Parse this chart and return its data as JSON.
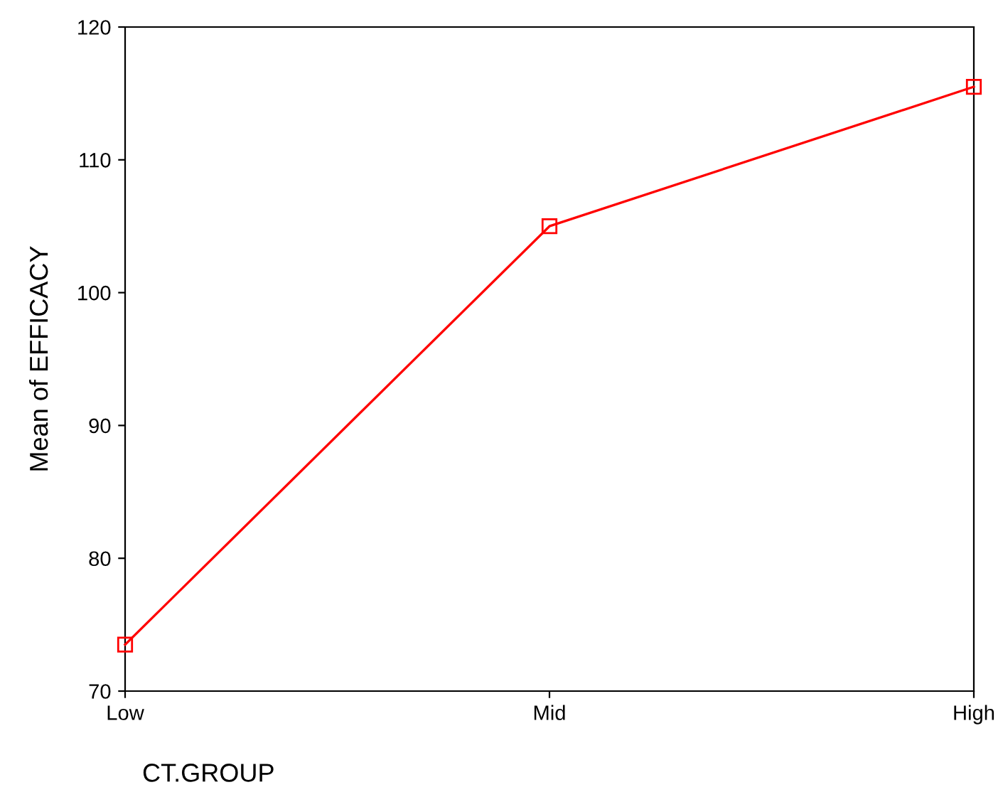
{
  "chart_data": {
    "type": "line",
    "xlabel": "CT.GROUP",
    "ylabel": "Mean of EFFICACY",
    "categories": [
      "Low",
      "Mid",
      "High"
    ],
    "series": [
      {
        "color": "#ff0000",
        "values": [
          73.5,
          105.0,
          115.5
        ]
      }
    ],
    "ylim": [
      70,
      120
    ],
    "yticks": [
      70,
      80,
      90,
      100,
      110,
      120
    ],
    "marker": "square",
    "line_style": "solid",
    "grid": false,
    "legend": false
  }
}
